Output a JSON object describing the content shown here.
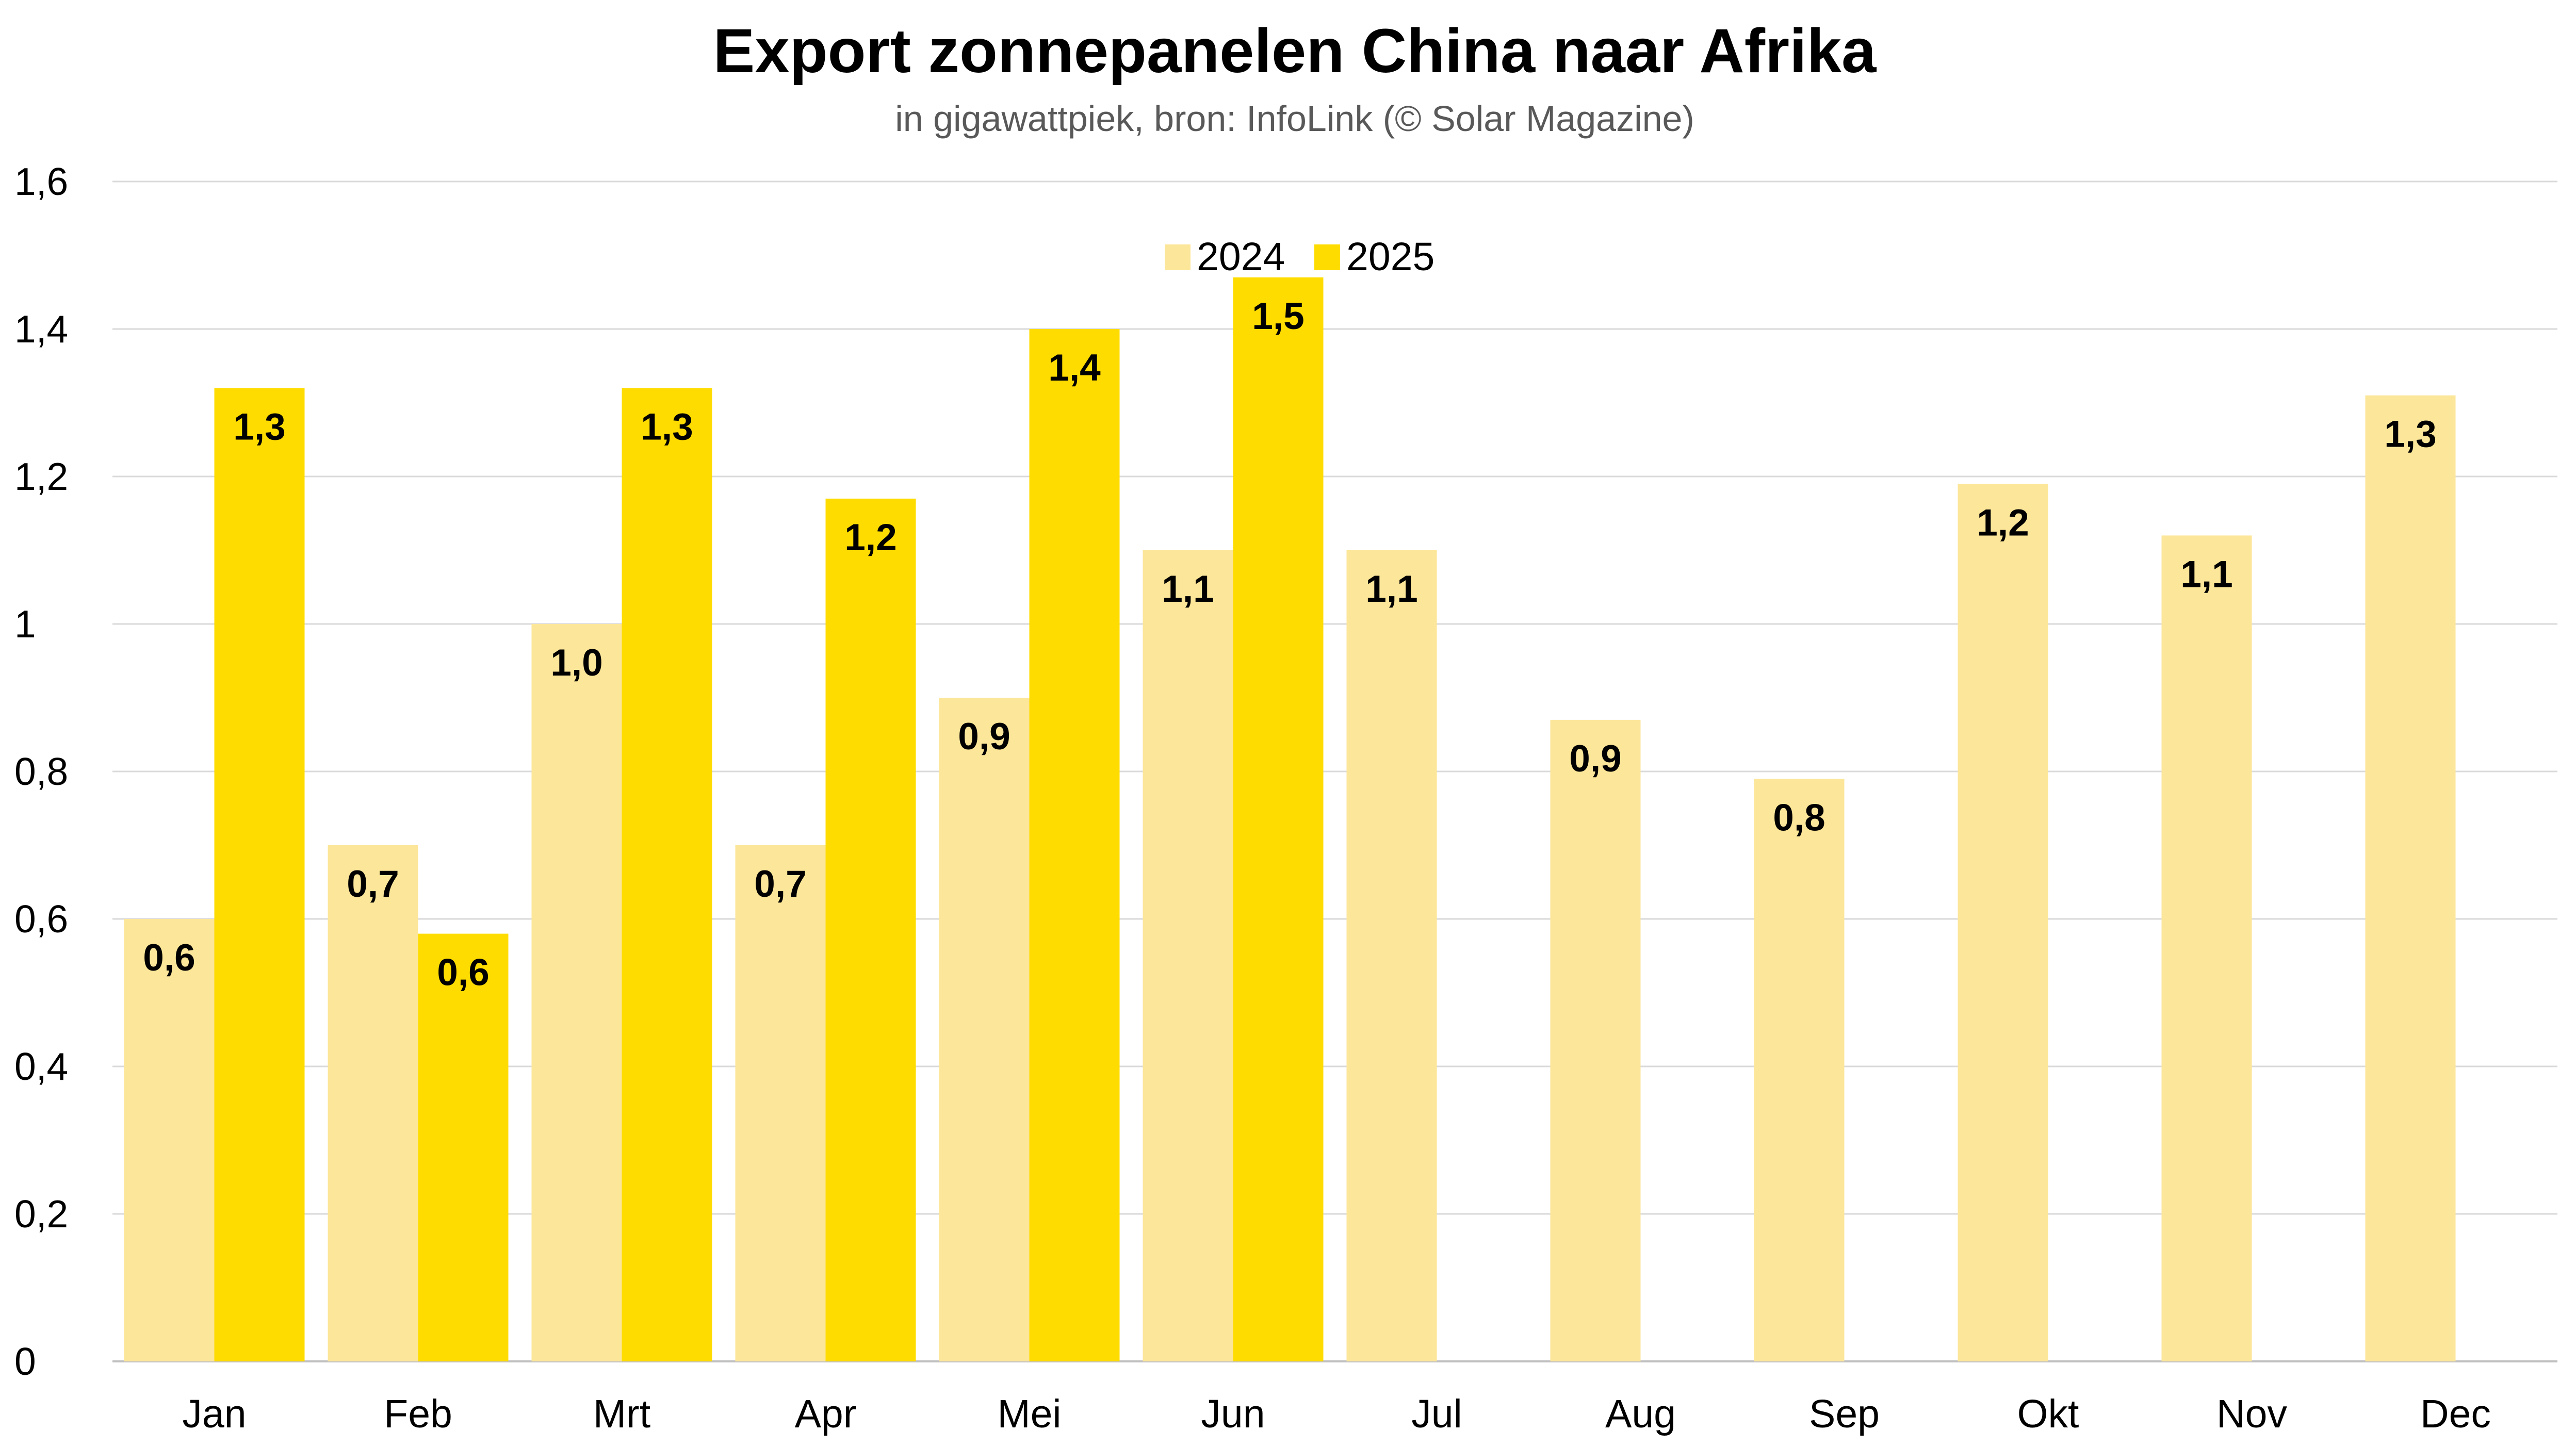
{
  "chart_data": {
    "type": "bar",
    "title": "Export zonnepanelen China naar Afrika",
    "subtitle": "in gigawattpiek, bron: InfoLink (© Solar Magazine)",
    "xlabel": "",
    "ylabel": "",
    "ylim": [
      0,
      1.6
    ],
    "yticks": [
      0,
      0.2,
      0.4,
      0.6,
      0.8,
      1,
      1.2,
      1.4,
      1.6
    ],
    "ytick_labels": [
      "0",
      "0,2",
      "0,4",
      "0,6",
      "0,8",
      "1",
      "1,2",
      "1,4",
      "1,6"
    ],
    "grid": true,
    "legend_position": "top-center",
    "categories": [
      "Jan",
      "Feb",
      "Mrt",
      "Apr",
      "Mei",
      "Jun",
      "Jul",
      "Aug",
      "Sep",
      "Okt",
      "Nov",
      "Dec"
    ],
    "series": [
      {
        "name": "2024",
        "color": "#fce699",
        "values": [
          0.6,
          0.7,
          1.0,
          0.7,
          0.9,
          1.1,
          1.1,
          0.87,
          0.79,
          1.19,
          1.12,
          1.31
        ],
        "labels": [
          "0,6",
          "0,7",
          "1,0",
          "0,7",
          "0,9",
          "1,1",
          "1,1",
          "0,9",
          "0,8",
          "1,2",
          "1,1",
          "1,3"
        ]
      },
      {
        "name": "2025",
        "color": "#ffdc00",
        "values": [
          1.32,
          0.58,
          1.32,
          1.17,
          1.4,
          1.47,
          null,
          null,
          null,
          null,
          null,
          null
        ],
        "labels": [
          "1,3",
          "0,6",
          "1,3",
          "1,2",
          "1,4",
          "1,5",
          null,
          null,
          null,
          null,
          null,
          null
        ]
      }
    ]
  }
}
